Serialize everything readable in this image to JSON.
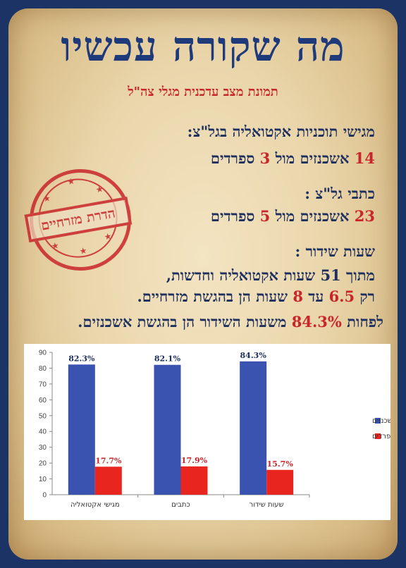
{
  "title": "מה שקורה עכשיו",
  "subtitle": "תמונת מצב עדכנית מגלי צה\"ל",
  "stamp": {
    "text": "הדרת מזרחיים"
  },
  "sections": {
    "hosts": {
      "heading": "מגישי תוכניות אקטואליה בגל\"צ:",
      "n1": "14",
      "t1": " אשכנזים מול ",
      "n2": "3",
      "t2": " ספרדים"
    },
    "writers": {
      "heading": "כתבי גל\"צ :",
      "n1": "23",
      "t1": " אשכנזים מול ",
      "n2": "5",
      "t2": " ספרדים"
    },
    "hours": {
      "heading": "שעות שידור :",
      "line1": "מתוך 51 שעות אקטואליה וחדשות,",
      "l2a": "רק ",
      "l2n1": "6.5",
      "l2b": " עד ",
      "l2n2": "8",
      "l2c": " שעות הן בהגשת מזרחיים."
    },
    "summary": {
      "a": "לפחות ",
      "pct": "84.3%",
      "b": " משעות השידור הן בהגשת אשכנזים."
    }
  },
  "colors": {
    "blue": "#3a52b0",
    "red": "#e8261f",
    "navy": "#1d2f5e",
    "accent_red": "#c8262a"
  },
  "chart_data": {
    "type": "bar",
    "categories": [
      "מגישי אקטואליה",
      "כתבים",
      "שעות שידור"
    ],
    "series": [
      {
        "name": "אשכנזים",
        "values": [
          82.3,
          82.1,
          84.3
        ],
        "labels": [
          "82.3%",
          "82.1%",
          "84.3%"
        ],
        "color": "#3a52b0"
      },
      {
        "name": "ספרדים",
        "values": [
          17.7,
          17.9,
          15.7
        ],
        "labels": [
          "17.7%",
          "17.9%",
          "15.7%"
        ],
        "color": "#e8261f"
      }
    ],
    "ylim": [
      0,
      90
    ],
    "yticks": [
      0,
      10,
      20,
      30,
      40,
      50,
      60,
      70,
      80,
      90
    ],
    "grid": false,
    "legend": "right"
  }
}
